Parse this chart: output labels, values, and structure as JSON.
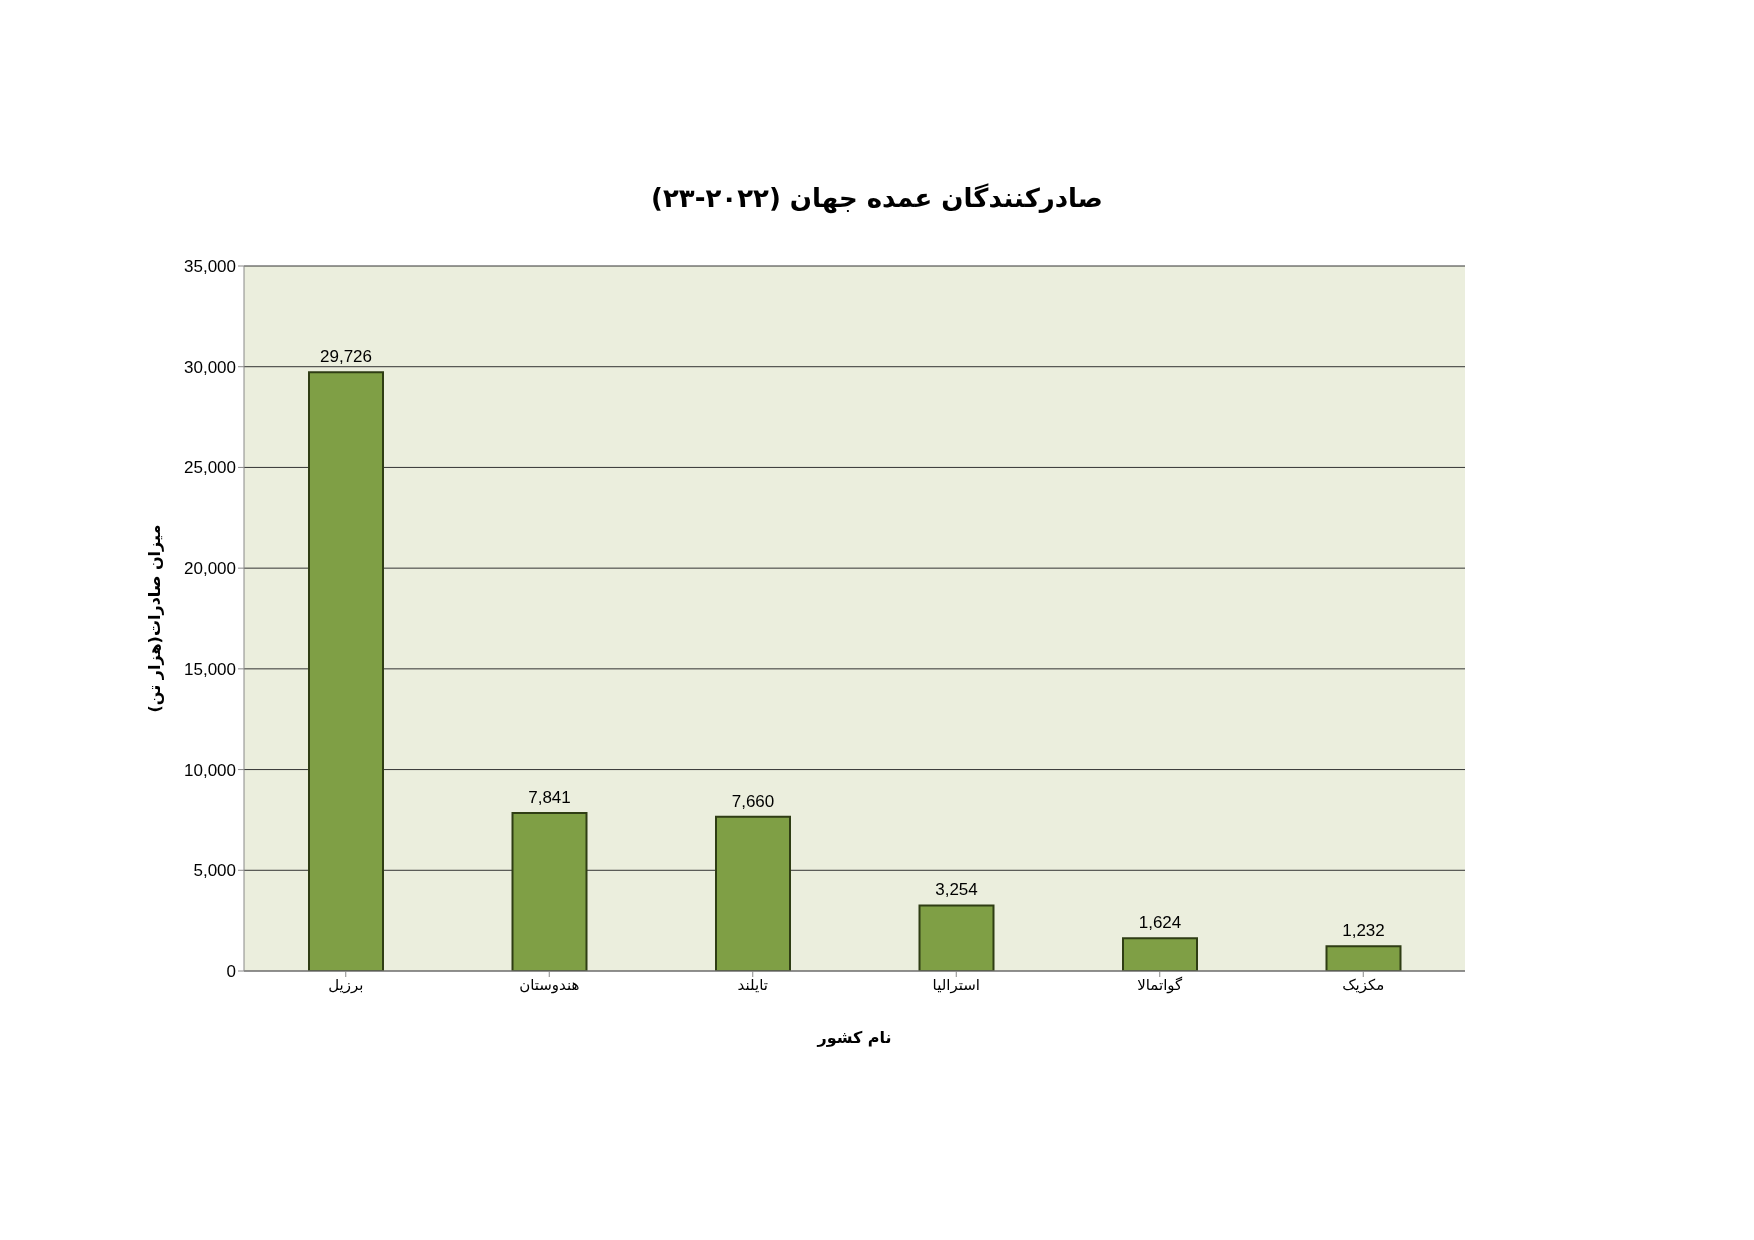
{
  "chart_data": {
    "type": "bar",
    "title": "صادرکنندگان عمده جهان (۲۰۲۲-۲۳)",
    "xlabel": "نام کشور",
    "ylabel": "میزان صادرات(هزار تن)",
    "categories": [
      "برزیل",
      "هندوستان",
      "تایلند",
      "استرالیا",
      "گواتمالا",
      "مکزیک"
    ],
    "values": [
      29726,
      7841,
      7660,
      3254,
      1624,
      1232
    ],
    "value_labels": [
      "29,726",
      "7,841",
      "7,660",
      "3,254",
      "1,624",
      "1,232"
    ],
    "color": "#7f9f45",
    "ylim": [
      0,
      35000
    ],
    "yticks": [
      0,
      {
        "value": 5000,
        "label": "5,000"
      },
      {
        "value": 10000,
        "label": "10,000"
      },
      {
        "value": 15000,
        "label": "15,000"
      },
      {
        "value": 20000,
        "label": "20,000"
      },
      {
        "value": 25000,
        "label": "25,000"
      },
      {
        "value": 30000,
        "label": "30,000"
      },
      {
        "value": 35000,
        "label": "35,000"
      }
    ],
    "grid": "y",
    "legend": false
  }
}
